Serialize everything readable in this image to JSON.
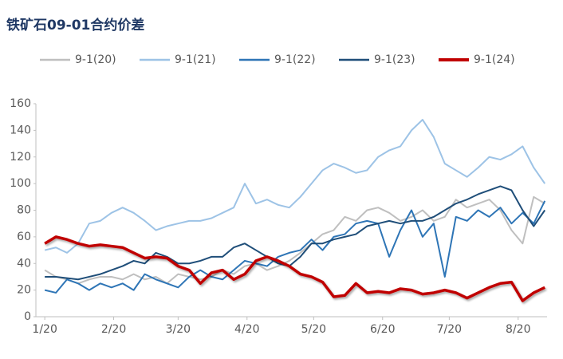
{
  "chart_data": {
    "type": "line",
    "title": "铁矿石09-01合约价差",
    "x": [
      0,
      5,
      10,
      15,
      20,
      25,
      30,
      35,
      40,
      45,
      50,
      55,
      60,
      65,
      70,
      75,
      80,
      85,
      90,
      95,
      100,
      105,
      110,
      115,
      120,
      125,
      130,
      135,
      140,
      145,
      150,
      155,
      160,
      165,
      170,
      175,
      180,
      185,
      190,
      195,
      200,
      205,
      210,
      215,
      220,
      225
    ],
    "xlim": [
      -4,
      226
    ],
    "xticks": [
      {
        "value": 0,
        "label": "1/20"
      },
      {
        "value": 31,
        "label": "2/20"
      },
      {
        "value": 60,
        "label": "3/20"
      },
      {
        "value": 91,
        "label": "4/20"
      },
      {
        "value": 121,
        "label": "5/20"
      },
      {
        "value": 152,
        "label": "6/20"
      },
      {
        "value": 182,
        "label": "7/20"
      },
      {
        "value": 213,
        "label": "8/20"
      }
    ],
    "ylim": [
      0,
      160
    ],
    "yticks": [
      0,
      20,
      40,
      60,
      80,
      100,
      120,
      140,
      160
    ],
    "series": [
      {
        "name": "9-1(20)",
        "color": "#bfbfbf",
        "values": [
          35,
          30,
          28,
          25,
          28,
          30,
          30,
          28,
          32,
          28,
          30,
          25,
          32,
          30,
          28,
          30,
          35,
          32,
          38,
          40,
          35,
          38,
          42,
          48,
          55,
          62,
          65,
          75,
          72,
          80,
          82,
          78,
          72,
          75,
          80,
          72,
          75,
          88,
          82,
          85,
          88,
          80,
          65,
          55,
          90,
          85
        ]
      },
      {
        "name": "9-1(21)",
        "color": "#9dc3e6",
        "values": [
          50,
          52,
          48,
          55,
          70,
          72,
          78,
          82,
          78,
          72,
          65,
          68,
          70,
          72,
          72,
          74,
          78,
          82,
          100,
          85,
          88,
          84,
          82,
          90,
          100,
          110,
          115,
          112,
          108,
          110,
          120,
          125,
          128,
          140,
          148,
          135,
          115,
          110,
          105,
          112,
          120,
          118,
          122,
          128,
          112,
          100
        ]
      },
      {
        "name": "9-1(22)",
        "color": "#2e75b6",
        "values": [
          20,
          18,
          28,
          25,
          20,
          25,
          22,
          25,
          20,
          32,
          28,
          25,
          22,
          30,
          35,
          30,
          28,
          35,
          42,
          40,
          38,
          45,
          48,
          50,
          58,
          50,
          60,
          62,
          70,
          72,
          70,
          45,
          65,
          80,
          60,
          70,
          30,
          75,
          72,
          80,
          75,
          82,
          70,
          78,
          70,
          87
        ]
      },
      {
        "name": "9-1(23)",
        "color": "#1f4e79",
        "values": [
          30,
          30,
          29,
          28,
          30,
          32,
          35,
          38,
          42,
          40,
          48,
          45,
          40,
          40,
          42,
          45,
          45,
          52,
          55,
          50,
          45,
          40,
          38,
          45,
          55,
          55,
          58,
          60,
          62,
          68,
          70,
          72,
          70,
          72,
          72,
          75,
          80,
          85,
          88,
          92,
          95,
          98,
          95,
          80,
          68,
          80
        ]
      },
      {
        "name": "9-1(24)",
        "color": "#c00000",
        "values": [
          55,
          60,
          58,
          55,
          53,
          54,
          53,
          52,
          48,
          44,
          45,
          44,
          38,
          35,
          25,
          33,
          35,
          28,
          32,
          42,
          45,
          42,
          38,
          32,
          30,
          26,
          15,
          16,
          25,
          18,
          19,
          18,
          21,
          20,
          17,
          18,
          20,
          18,
          14,
          18,
          22,
          25,
          26,
          12,
          18,
          22
        ]
      }
    ]
  }
}
